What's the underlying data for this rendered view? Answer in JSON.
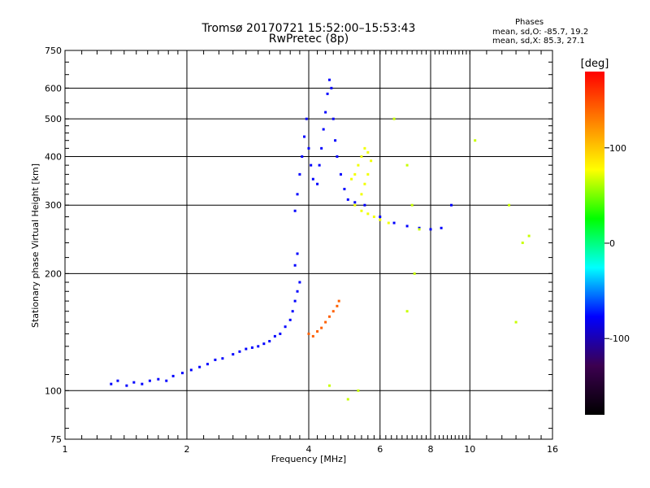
{
  "header": {
    "title_line1": "Tromsø 20170721 15:52:00–15:53:43",
    "title_line2": "RwPretec (8p)"
  },
  "stats": {
    "heading": "Phases",
    "line_o": "mean, sd,O: -85.7, 19.2",
    "line_x": "mean, sd,X:  85.3, 27.1"
  },
  "chart_data": {
    "type": "scatter",
    "xlabel": "Frequency [MHz]",
    "ylabel": "Stationary phase Virtual Height [km]",
    "x_scale": "log",
    "y_scale": "log",
    "xlim": [
      1,
      16
    ],
    "ylim": [
      75,
      750
    ],
    "x_ticks": [
      1,
      2,
      4,
      6,
      8,
      10,
      16
    ],
    "y_ticks": [
      75,
      100,
      200,
      300,
      400,
      500,
      600,
      750
    ],
    "grid": true,
    "colorbar": {
      "label": "[deg]",
      "range": [
        -180,
        180
      ],
      "ticks": [
        100,
        0,
        -100
      ],
      "colors": [
        "#ff0000",
        "#ff8000",
        "#ffff00",
        "#00ff00",
        "#00ffff",
        "#0000ff",
        "#3c0050",
        "#000000"
      ]
    },
    "series": [
      {
        "name": "",
        "color_phase": -110,
        "points": [
          [
            1.3,
            104
          ],
          [
            1.35,
            106
          ],
          [
            1.42,
            103
          ],
          [
            1.48,
            105
          ],
          [
            1.55,
            104
          ],
          [
            1.62,
            106
          ],
          [
            1.7,
            107
          ],
          [
            1.78,
            106
          ],
          [
            1.85,
            109
          ],
          [
            1.95,
            111
          ],
          [
            2.05,
            113
          ],
          [
            2.15,
            115
          ],
          [
            2.25,
            117
          ],
          [
            2.35,
            120
          ],
          [
            2.45,
            121
          ],
          [
            2.6,
            124
          ],
          [
            2.7,
            126
          ],
          [
            2.8,
            128
          ],
          [
            2.9,
            129
          ],
          [
            3.0,
            130
          ],
          [
            3.1,
            132
          ],
          [
            3.2,
            134
          ],
          [
            3.3,
            138
          ],
          [
            3.4,
            140
          ],
          [
            3.5,
            146
          ],
          [
            3.6,
            152
          ],
          [
            3.65,
            160
          ],
          [
            3.7,
            170
          ],
          [
            3.75,
            180
          ],
          [
            3.8,
            190
          ],
          [
            3.7,
            210
          ],
          [
            3.75,
            225
          ]
        ]
      },
      {
        "name": "",
        "color_phase": -110,
        "points": [
          [
            3.7,
            290
          ],
          [
            3.75,
            320
          ],
          [
            3.8,
            360
          ],
          [
            3.85,
            400
          ],
          [
            3.9,
            450
          ],
          [
            3.95,
            500
          ],
          [
            4.0,
            420
          ],
          [
            4.05,
            380
          ],
          [
            4.1,
            350
          ],
          [
            4.2,
            340
          ],
          [
            4.25,
            380
          ],
          [
            4.3,
            420
          ],
          [
            4.35,
            470
          ],
          [
            4.4,
            520
          ],
          [
            4.45,
            580
          ],
          [
            4.5,
            630
          ],
          [
            4.55,
            600
          ],
          [
            4.6,
            500
          ],
          [
            4.65,
            440
          ],
          [
            4.7,
            400
          ],
          [
            4.8,
            360
          ],
          [
            4.9,
            330
          ],
          [
            5.0,
            310
          ],
          [
            5.2,
            305
          ],
          [
            5.5,
            300
          ],
          [
            6.0,
            280
          ],
          [
            6.5,
            270
          ],
          [
            7.0,
            265
          ],
          [
            7.5,
            262
          ],
          [
            8.0,
            260
          ],
          [
            8.5,
            262
          ],
          [
            9.0,
            300
          ]
        ]
      },
      {
        "name": "",
        "color_phase": 150,
        "points": [
          [
            4.0,
            140
          ],
          [
            4.1,
            138
          ],
          [
            4.2,
            142
          ],
          [
            4.3,
            145
          ],
          [
            4.4,
            150
          ],
          [
            4.5,
            155
          ],
          [
            4.6,
            160
          ],
          [
            4.7,
            165
          ],
          [
            4.75,
            170
          ]
        ]
      },
      {
        "name": "",
        "color_phase": 90,
        "points": [
          [
            5.1,
            350
          ],
          [
            5.2,
            360
          ],
          [
            5.3,
            380
          ],
          [
            5.4,
            400
          ],
          [
            5.5,
            420
          ],
          [
            5.6,
            410
          ],
          [
            5.7,
            390
          ],
          [
            5.6,
            360
          ],
          [
            5.5,
            340
          ],
          [
            5.4,
            320
          ],
          [
            5.2,
            300
          ],
          [
            5.4,
            290
          ],
          [
            5.6,
            285
          ],
          [
            5.8,
            280
          ],
          [
            6.0,
            275
          ],
          [
            6.3,
            270
          ]
        ]
      },
      {
        "name": "",
        "color_phase": 60,
        "points": [
          [
            6.5,
            500
          ],
          [
            7.0,
            380
          ],
          [
            7.2,
            300
          ],
          [
            7.5,
            260
          ],
          [
            7.3,
            200
          ],
          [
            7.0,
            160
          ],
          [
            10.3,
            440
          ],
          [
            12.5,
            300
          ],
          [
            13.0,
            150
          ],
          [
            13.5,
            240
          ],
          [
            14.0,
            250
          ],
          [
            5.0,
            95
          ],
          [
            5.3,
            100
          ],
          [
            4.5,
            103
          ]
        ]
      }
    ]
  }
}
